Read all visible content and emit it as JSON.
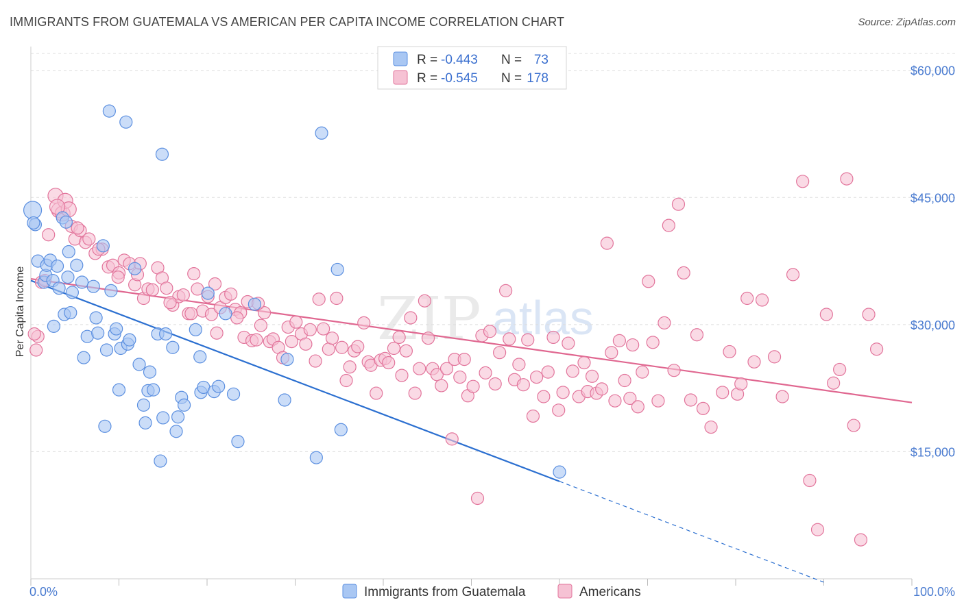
{
  "title": "IMMIGRANTS FROM GUATEMALA VS AMERICAN PER CAPITA INCOME CORRELATION CHART",
  "source": "Source: ZipAtlas.com",
  "watermark": {
    "zip": "ZIP",
    "atlas": "atlas"
  },
  "colors": {
    "blue": "#5b8fe0",
    "blue_fill": "#a9c7f3",
    "pink": "#e2749b",
    "pink_fill": "#f6c2d4",
    "blue_line": "#2b6fd0",
    "pink_line": "#e06790"
  },
  "legend": {
    "r_label": "R =",
    "n_label": "N =",
    "blue_r": "-0.443",
    "blue_n": "73",
    "pink_r": "-0.545",
    "pink_n": "178"
  },
  "bottom_legend": {
    "blue": "Immigrants from Guatemala",
    "pink": "Americans"
  },
  "chart_data": {
    "type": "scatter",
    "title": "IMMIGRANTS FROM GUATEMALA VS AMERICAN PER CAPITA INCOME CORRELATION CHART",
    "xlabel": "",
    "ylabel": "Per Capita Income",
    "xlim": [
      0,
      100
    ],
    "ylim": [
      0,
      62000
    ],
    "x_tick_labels": [
      "0.0%",
      "100.0%"
    ],
    "y_ticks": [
      15000,
      30000,
      45000,
      60000
    ],
    "y_tick_labels": [
      "$15,000",
      "$30,000",
      "$45,000",
      "$60,000"
    ],
    "series": [
      {
        "name": "Immigrants from Guatemala",
        "color": "#5b8fe0",
        "trend": {
          "x0": 0,
          "y0": 35200,
          "x1": 60,
          "y1": 11500,
          "dash_to_x": 90,
          "dash_to_y": -400
        },
        "points": [
          [
            0.2,
            43500
          ],
          [
            0.5,
            41800
          ],
          [
            0.8,
            37500
          ],
          [
            1.5,
            35000
          ],
          [
            1.7,
            35800
          ],
          [
            1.8,
            37000
          ],
          [
            2.2,
            37600
          ],
          [
            2.5,
            35200
          ],
          [
            2.6,
            29800
          ],
          [
            3.0,
            36900
          ],
          [
            3.2,
            34300
          ],
          [
            3.6,
            42600
          ],
          [
            3.8,
            31200
          ],
          [
            4.0,
            42100
          ],
          [
            4.2,
            35600
          ],
          [
            4.3,
            38600
          ],
          [
            4.5,
            31400
          ],
          [
            4.7,
            33800
          ],
          [
            5.2,
            37000
          ],
          [
            5.8,
            35000
          ],
          [
            6.0,
            26100
          ],
          [
            6.4,
            28600
          ],
          [
            7.1,
            34500
          ],
          [
            7.4,
            30800
          ],
          [
            7.6,
            29000
          ],
          [
            8.2,
            39300
          ],
          [
            8.4,
            18000
          ],
          [
            8.6,
            27000
          ],
          [
            8.9,
            55200
          ],
          [
            9.1,
            34000
          ],
          [
            9.5,
            28900
          ],
          [
            9.7,
            29500
          ],
          [
            10.0,
            22300
          ],
          [
            10.2,
            27200
          ],
          [
            10.8,
            53900
          ],
          [
            11.0,
            27700
          ],
          [
            11.2,
            28200
          ],
          [
            11.8,
            36600
          ],
          [
            12.3,
            25300
          ],
          [
            12.8,
            20500
          ],
          [
            13.0,
            18400
          ],
          [
            13.3,
            22200
          ],
          [
            13.5,
            24400
          ],
          [
            13.9,
            22300
          ],
          [
            14.4,
            28900
          ],
          [
            14.7,
            13900
          ],
          [
            14.9,
            50100
          ],
          [
            15.0,
            19000
          ],
          [
            15.3,
            28900
          ],
          [
            16.1,
            27300
          ],
          [
            16.5,
            17400
          ],
          [
            16.7,
            19100
          ],
          [
            17.1,
            21400
          ],
          [
            17.4,
            20500
          ],
          [
            18.7,
            29400
          ],
          [
            19.2,
            26200
          ],
          [
            19.3,
            22000
          ],
          [
            19.6,
            22600
          ],
          [
            20.1,
            33700
          ],
          [
            20.8,
            22100
          ],
          [
            21.3,
            22700
          ],
          [
            22.1,
            31300
          ],
          [
            23.0,
            21800
          ],
          [
            23.5,
            16200
          ],
          [
            25.4,
            32400
          ],
          [
            28.8,
            21100
          ],
          [
            29.1,
            25900
          ],
          [
            32.4,
            14300
          ],
          [
            33.0,
            52600
          ],
          [
            34.8,
            36500
          ],
          [
            35.2,
            17600
          ],
          [
            60.0,
            12600
          ],
          [
            0.3,
            42000
          ]
        ]
      },
      {
        "name": "Americans",
        "color": "#e2749b",
        "trend": {
          "x0": 0,
          "y0": 35400,
          "x1": 100,
          "y1": 20800
        },
        "points": [
          [
            0.6,
            27000
          ],
          [
            0.8,
            28600
          ],
          [
            1.2,
            35000
          ],
          [
            2.0,
            40600
          ],
          [
            2.8,
            45200
          ],
          [
            3.2,
            43500
          ],
          [
            3.6,
            43100
          ],
          [
            3.9,
            44600
          ],
          [
            4.3,
            43600
          ],
          [
            4.6,
            41600
          ],
          [
            5.0,
            40100
          ],
          [
            5.6,
            41100
          ],
          [
            6.2,
            39700
          ],
          [
            6.6,
            40100
          ],
          [
            7.3,
            38400
          ],
          [
            8.1,
            38900
          ],
          [
            8.8,
            36800
          ],
          [
            9.3,
            37000
          ],
          [
            10.0,
            36100
          ],
          [
            10.6,
            37600
          ],
          [
            11.2,
            37200
          ],
          [
            11.8,
            34700
          ],
          [
            12.4,
            37200
          ],
          [
            12.8,
            33100
          ],
          [
            13.3,
            34200
          ],
          [
            13.8,
            34100
          ],
          [
            14.4,
            36700
          ],
          [
            14.9,
            35500
          ],
          [
            15.4,
            34300
          ],
          [
            16.1,
            32300
          ],
          [
            16.8,
            33300
          ],
          [
            17.3,
            33500
          ],
          [
            17.9,
            31300
          ],
          [
            18.5,
            36000
          ],
          [
            18.9,
            34200
          ],
          [
            19.5,
            31600
          ],
          [
            20.1,
            33300
          ],
          [
            20.5,
            31200
          ],
          [
            21.1,
            29000
          ],
          [
            21.5,
            32000
          ],
          [
            22.1,
            33200
          ],
          [
            22.7,
            33600
          ],
          [
            23.2,
            31800
          ],
          [
            23.8,
            31400
          ],
          [
            24.2,
            28500
          ],
          [
            24.6,
            32700
          ],
          [
            25.1,
            28100
          ],
          [
            25.6,
            28200
          ],
          [
            26.1,
            29900
          ],
          [
            26.5,
            31400
          ],
          [
            27.1,
            28000
          ],
          [
            27.5,
            28300
          ],
          [
            28.1,
            27300
          ],
          [
            28.6,
            26100
          ],
          [
            29.2,
            29700
          ],
          [
            29.6,
            28000
          ],
          [
            30.1,
            30300
          ],
          [
            30.7,
            28900
          ],
          [
            31.2,
            27700
          ],
          [
            31.7,
            29400
          ],
          [
            32.3,
            25700
          ],
          [
            32.7,
            33000
          ],
          [
            33.2,
            29500
          ],
          [
            33.8,
            27100
          ],
          [
            34.2,
            28400
          ],
          [
            34.7,
            33100
          ],
          [
            35.3,
            27300
          ],
          [
            35.8,
            23400
          ],
          [
            36.2,
            25000
          ],
          [
            36.7,
            26900
          ],
          [
            37.1,
            27400
          ],
          [
            37.8,
            30200
          ],
          [
            38.3,
            25600
          ],
          [
            38.6,
            25200
          ],
          [
            39.2,
            21900
          ],
          [
            39.7,
            25800
          ],
          [
            40.2,
            26000
          ],
          [
            40.6,
            25500
          ],
          [
            41.2,
            27200
          ],
          [
            41.8,
            28500
          ],
          [
            42.1,
            24000
          ],
          [
            42.6,
            26900
          ],
          [
            43.1,
            30800
          ],
          [
            43.6,
            21900
          ],
          [
            44.1,
            24800
          ],
          [
            44.7,
            32800
          ],
          [
            45.1,
            28400
          ],
          [
            45.6,
            24800
          ],
          [
            46.1,
            24100
          ],
          [
            46.6,
            22800
          ],
          [
            47.2,
            24800
          ],
          [
            47.8,
            16500
          ],
          [
            48.1,
            25900
          ],
          [
            48.7,
            23800
          ],
          [
            49.2,
            25900
          ],
          [
            49.6,
            21600
          ],
          [
            50.2,
            22700
          ],
          [
            50.7,
            9500
          ],
          [
            51.2,
            28700
          ],
          [
            51.6,
            24300
          ],
          [
            52.1,
            29200
          ],
          [
            52.7,
            23000
          ],
          [
            53.2,
            26700
          ],
          [
            53.9,
            34000
          ],
          [
            54.3,
            28300
          ],
          [
            54.9,
            23500
          ],
          [
            55.4,
            25300
          ],
          [
            55.9,
            22900
          ],
          [
            56.4,
            28200
          ],
          [
            57.0,
            19200
          ],
          [
            57.4,
            23800
          ],
          [
            58.2,
            21500
          ],
          [
            58.7,
            24400
          ],
          [
            59.3,
            28500
          ],
          [
            59.9,
            19900
          ],
          [
            60.4,
            22000
          ],
          [
            61.0,
            27800
          ],
          [
            61.5,
            24500
          ],
          [
            62.2,
            21500
          ],
          [
            62.8,
            25500
          ],
          [
            63.2,
            22100
          ],
          [
            63.7,
            23900
          ],
          [
            64.2,
            21900
          ],
          [
            64.8,
            22400
          ],
          [
            65.4,
            39600
          ],
          [
            65.9,
            26700
          ],
          [
            66.3,
            21000
          ],
          [
            66.8,
            28100
          ],
          [
            67.4,
            23400
          ],
          [
            68.0,
            21300
          ],
          [
            68.3,
            27600
          ],
          [
            68.9,
            20300
          ],
          [
            69.4,
            24400
          ],
          [
            70.1,
            35100
          ],
          [
            70.6,
            27900
          ],
          [
            71.2,
            21000
          ],
          [
            71.9,
            30200
          ],
          [
            72.4,
            41700
          ],
          [
            73.0,
            24600
          ],
          [
            73.5,
            44200
          ],
          [
            74.1,
            36100
          ],
          [
            74.9,
            21100
          ],
          [
            75.6,
            28800
          ],
          [
            76.3,
            20100
          ],
          [
            77.2,
            17900
          ],
          [
            78.5,
            22000
          ],
          [
            79.3,
            26800
          ],
          [
            80.2,
            21800
          ],
          [
            80.6,
            23000
          ],
          [
            81.3,
            33100
          ],
          [
            82.1,
            25600
          ],
          [
            83.0,
            32900
          ],
          [
            84.4,
            26200
          ],
          [
            85.3,
            21500
          ],
          [
            86.5,
            35900
          ],
          [
            87.6,
            46900
          ],
          [
            88.4,
            11600
          ],
          [
            89.3,
            5800
          ],
          [
            90.3,
            31200
          ],
          [
            91.1,
            23100
          ],
          [
            91.8,
            24700
          ],
          [
            92.6,
            47200
          ],
          [
            93.4,
            18100
          ],
          [
            94.2,
            4600
          ],
          [
            95.1,
            31200
          ],
          [
            96.0,
            27100
          ],
          [
            0.4,
            28900
          ],
          [
            1.6,
            35200
          ],
          [
            3.0,
            43900
          ],
          [
            5.3,
            41400
          ],
          [
            7.7,
            38900
          ],
          [
            9.9,
            35600
          ],
          [
            12.1,
            35900
          ],
          [
            15.8,
            32600
          ],
          [
            18.2,
            31300
          ],
          [
            20.9,
            34800
          ],
          [
            23.4,
            30800
          ],
          [
            25.8,
            32500
          ]
        ]
      }
    ]
  }
}
